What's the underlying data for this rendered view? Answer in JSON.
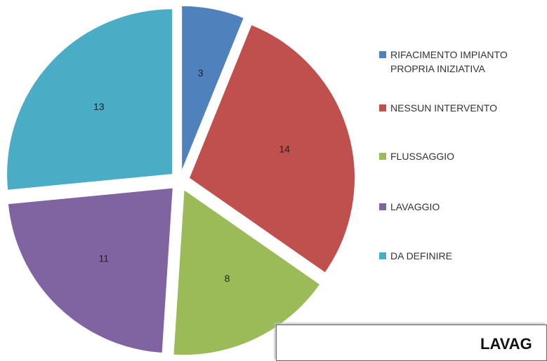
{
  "chart_data": {
    "type": "pie",
    "categories": [
      "RIFACIMENTO IMPIANTO PROPRIA INIZIATIVA",
      "NESSUN INTERVENTO",
      "FLUSSAGGIO",
      "LAVAGGIO",
      "DA DEFINIRE"
    ],
    "values": [
      3,
      14,
      8,
      11,
      13
    ],
    "colors": [
      "#4f81bd",
      "#c0504d",
      "#9bbb59",
      "#8064a2",
      "#4bacc6"
    ],
    "legend": "right",
    "annotation": "LAVAG"
  }
}
